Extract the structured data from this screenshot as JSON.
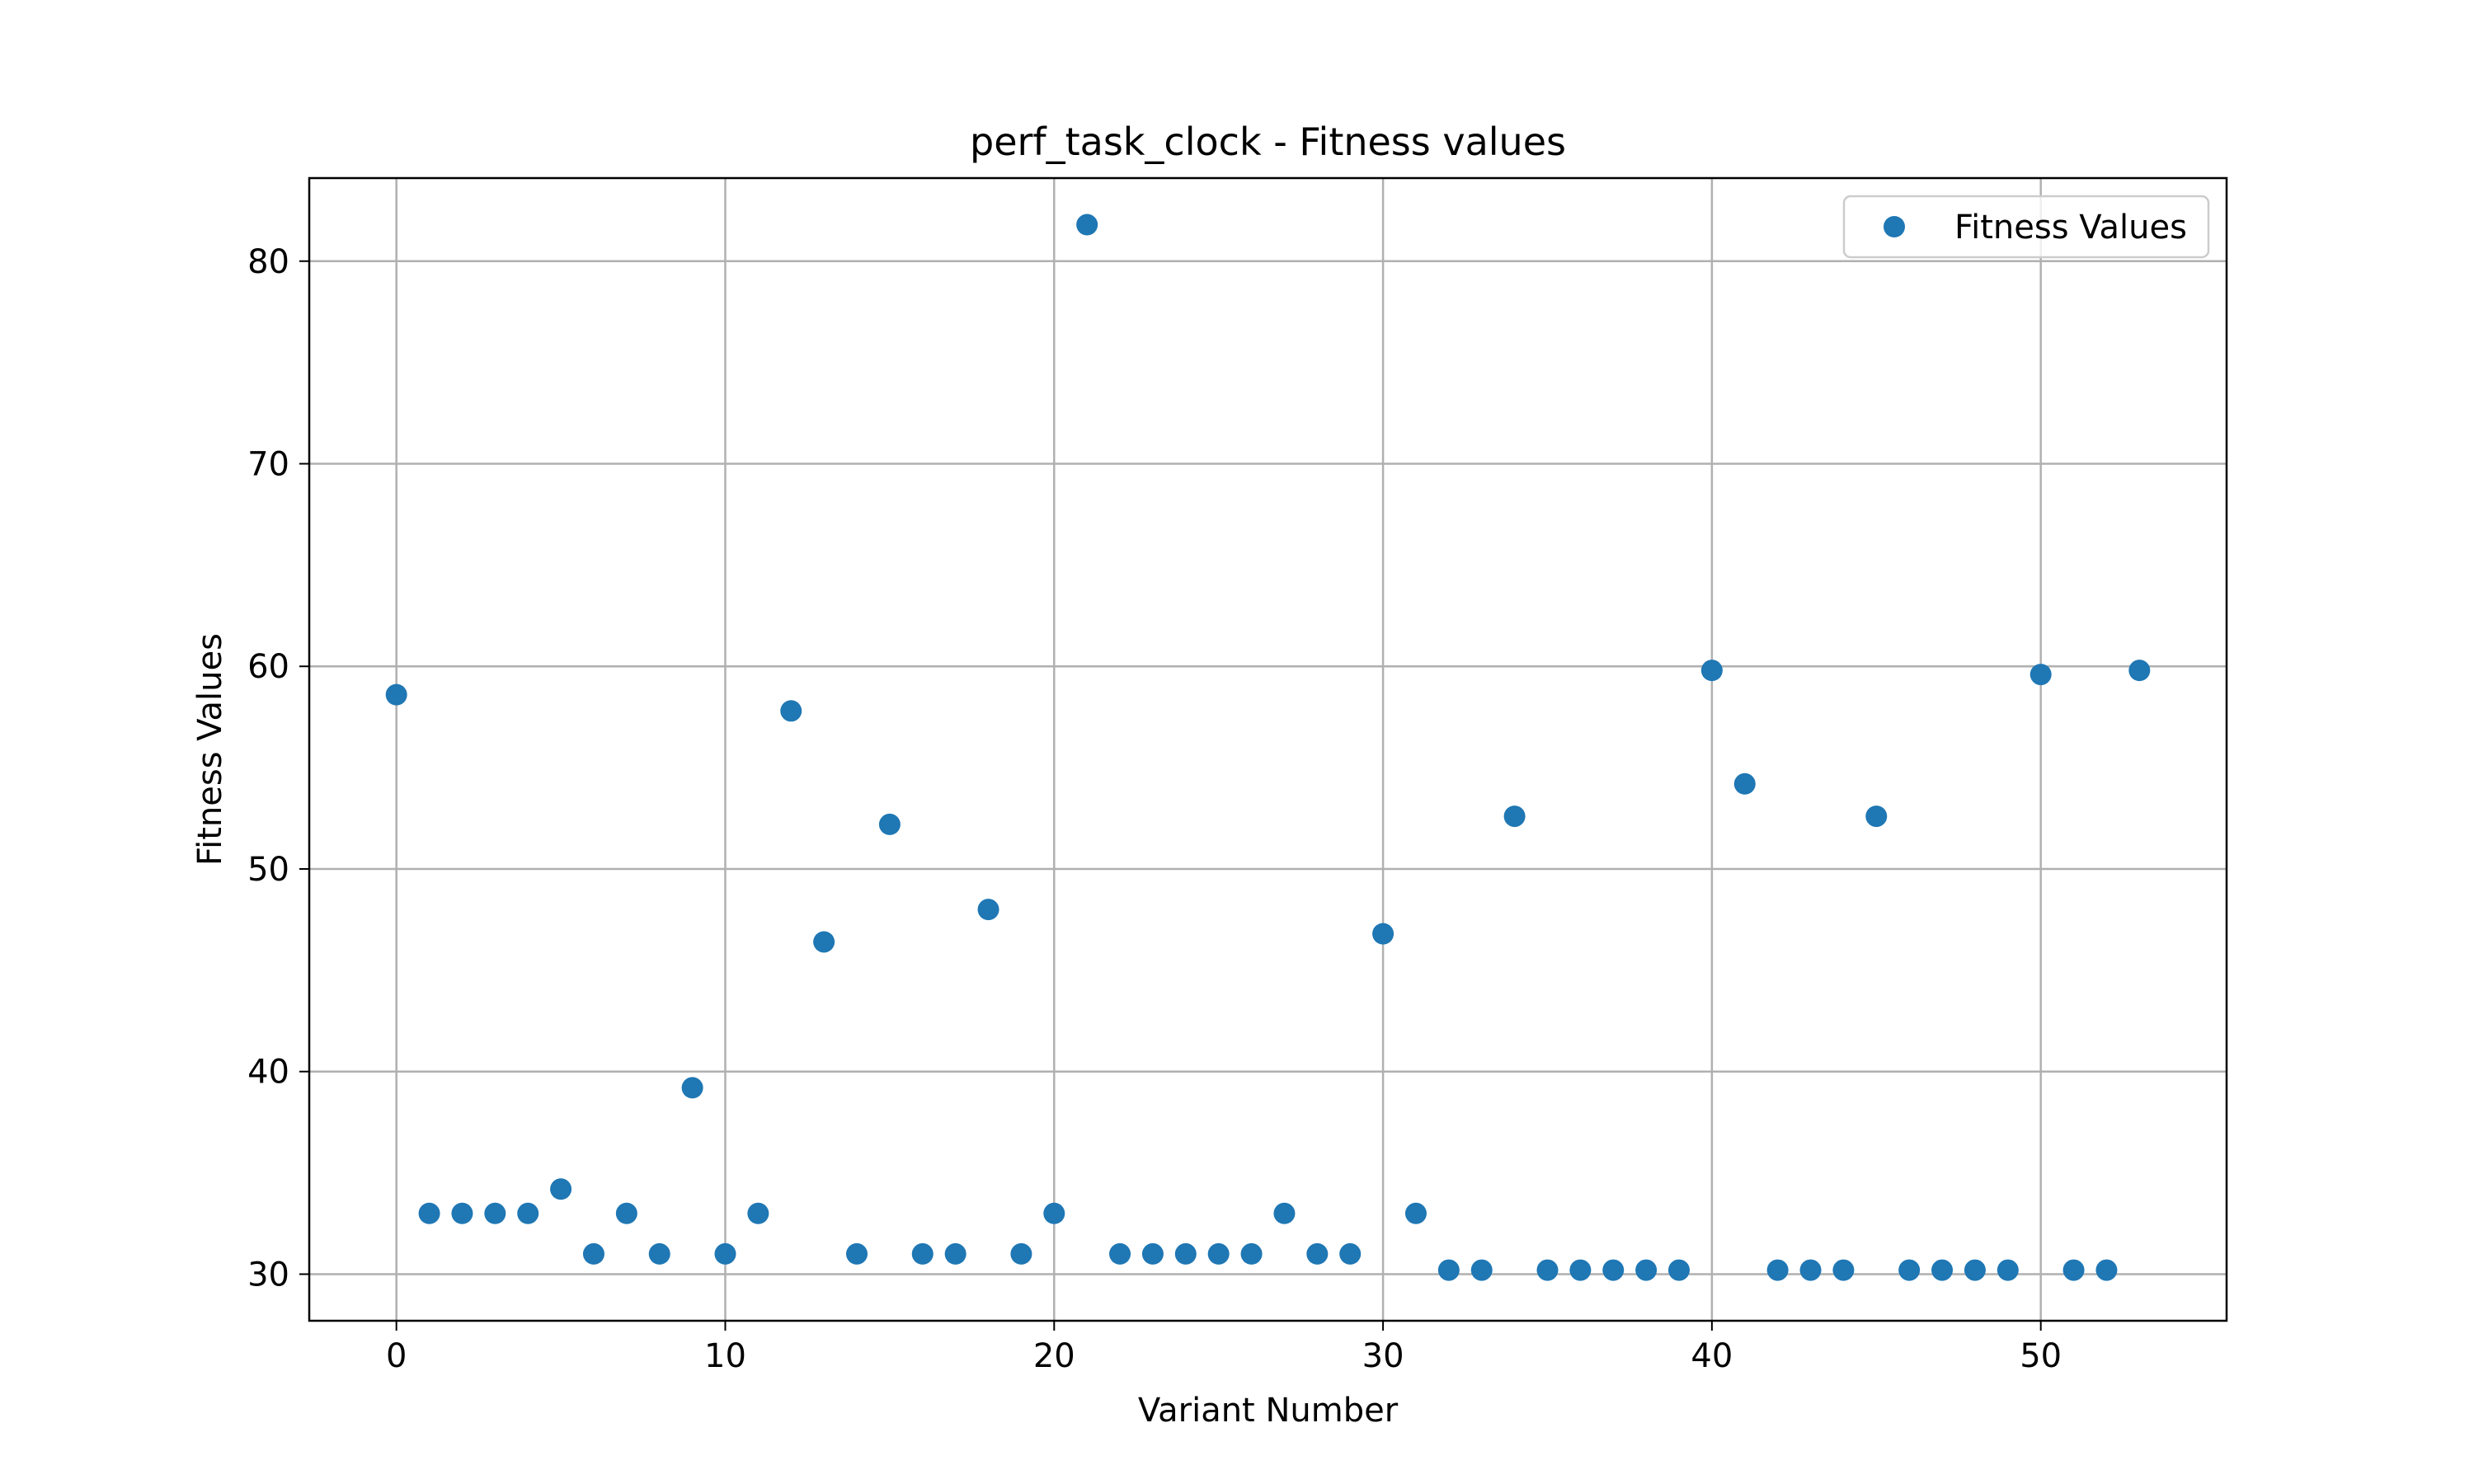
{
  "chart_data": {
    "type": "scatter",
    "title": "perf_task_clock - Fitness values",
    "xlabel": "Variant Number",
    "ylabel": "Fitness Values",
    "xlim": [
      -2.65,
      55.65
    ],
    "ylim": [
      27.7,
      84.1
    ],
    "xticks": [
      0,
      10,
      20,
      30,
      40,
      50
    ],
    "yticks": [
      30,
      40,
      50,
      60,
      70,
      80
    ],
    "grid": true,
    "legend_position": "top-right",
    "series": [
      {
        "name": "Fitness Values",
        "color": "#1f77b4",
        "x": [
          0,
          1,
          2,
          3,
          4,
          5,
          6,
          7,
          8,
          9,
          10,
          11,
          12,
          13,
          14,
          15,
          16,
          17,
          18,
          19,
          20,
          21,
          22,
          23,
          24,
          25,
          26,
          27,
          28,
          29,
          30,
          31,
          32,
          33,
          34,
          35,
          36,
          37,
          38,
          39,
          40,
          41,
          42,
          43,
          44,
          45,
          46,
          47,
          48,
          49,
          50,
          51,
          52,
          53
        ],
        "y": [
          58.6,
          33.0,
          33.0,
          33.0,
          33.0,
          34.2,
          31.0,
          33.0,
          31.0,
          39.2,
          31.0,
          33.0,
          57.8,
          46.4,
          31.0,
          52.2,
          31.0,
          31.0,
          48.0,
          31.0,
          33.0,
          81.8,
          31.0,
          31.0,
          31.0,
          31.0,
          31.0,
          33.0,
          31.0,
          31.0,
          46.8,
          33.0,
          30.2,
          30.2,
          52.6,
          30.2,
          30.2,
          30.2,
          30.2,
          30.2,
          59.8,
          54.2,
          30.2,
          30.2,
          30.2,
          52.6,
          30.2,
          30.2,
          30.2,
          30.2,
          59.6,
          30.2,
          30.2,
          59.8
        ]
      }
    ]
  }
}
